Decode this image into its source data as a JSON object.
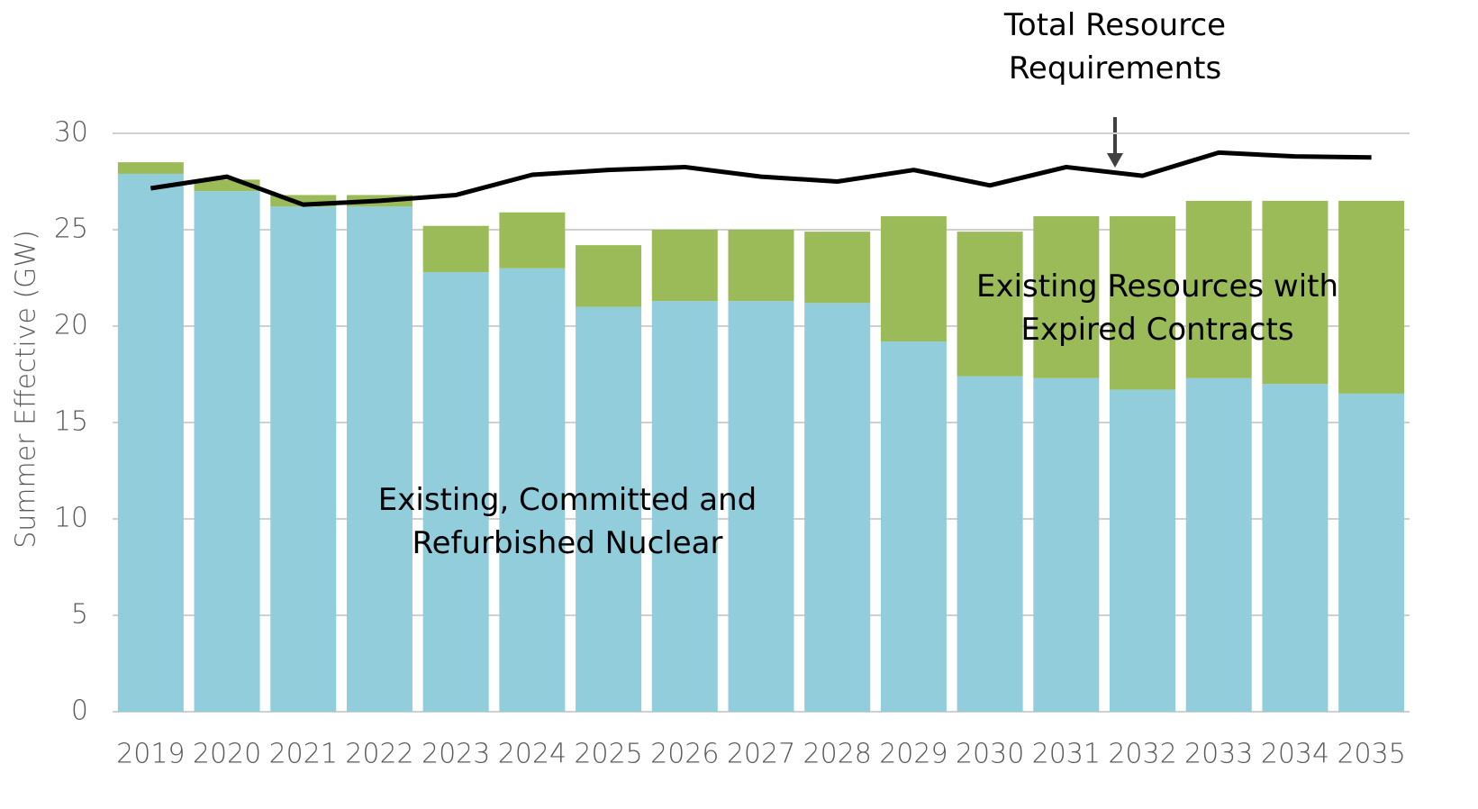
{
  "chart_data": {
    "type": "stacked_bar_line",
    "categories": [
      "2019",
      "2020",
      "2021",
      "2022",
      "2023",
      "2024",
      "2025",
      "2026",
      "2027",
      "2028",
      "2029",
      "2030",
      "2031",
      "2032",
      "2033",
      "2034",
      "2035"
    ],
    "ylabel": "Summer Effective (GW)",
    "ylim": [
      0,
      30
    ],
    "yticks": [
      0,
      5,
      10,
      15,
      20,
      25,
      30
    ],
    "grid": true,
    "series": [
      {
        "name": "Existing, Committed and Refurbished Nuclear",
        "color": "#92cddc",
        "kind": "bar",
        "values": [
          27.9,
          27.0,
          26.2,
          26.2,
          22.8,
          23.0,
          21.0,
          21.3,
          21.3,
          21.2,
          19.2,
          17.4,
          17.3,
          16.7,
          17.3,
          17.0,
          16.5
        ]
      },
      {
        "name": "Existing Resources with Expired Contracts",
        "color": "#9bbb59",
        "kind": "bar",
        "values": [
          0.6,
          0.6,
          0.6,
          0.6,
          2.4,
          2.9,
          3.2,
          3.7,
          3.7,
          3.7,
          6.5,
          7.5,
          8.4,
          9.0,
          9.2,
          9.5,
          10.0
        ]
      },
      {
        "name": "Total Resource Requirements",
        "color": "#000000",
        "kind": "line",
        "values": [
          27.15,
          27.75,
          26.3,
          26.5,
          26.8,
          27.85,
          28.1,
          28.25,
          27.75,
          27.5,
          28.1,
          27.3,
          28.25,
          27.8,
          29.0,
          28.8,
          28.75
        ]
      }
    ]
  }
}
